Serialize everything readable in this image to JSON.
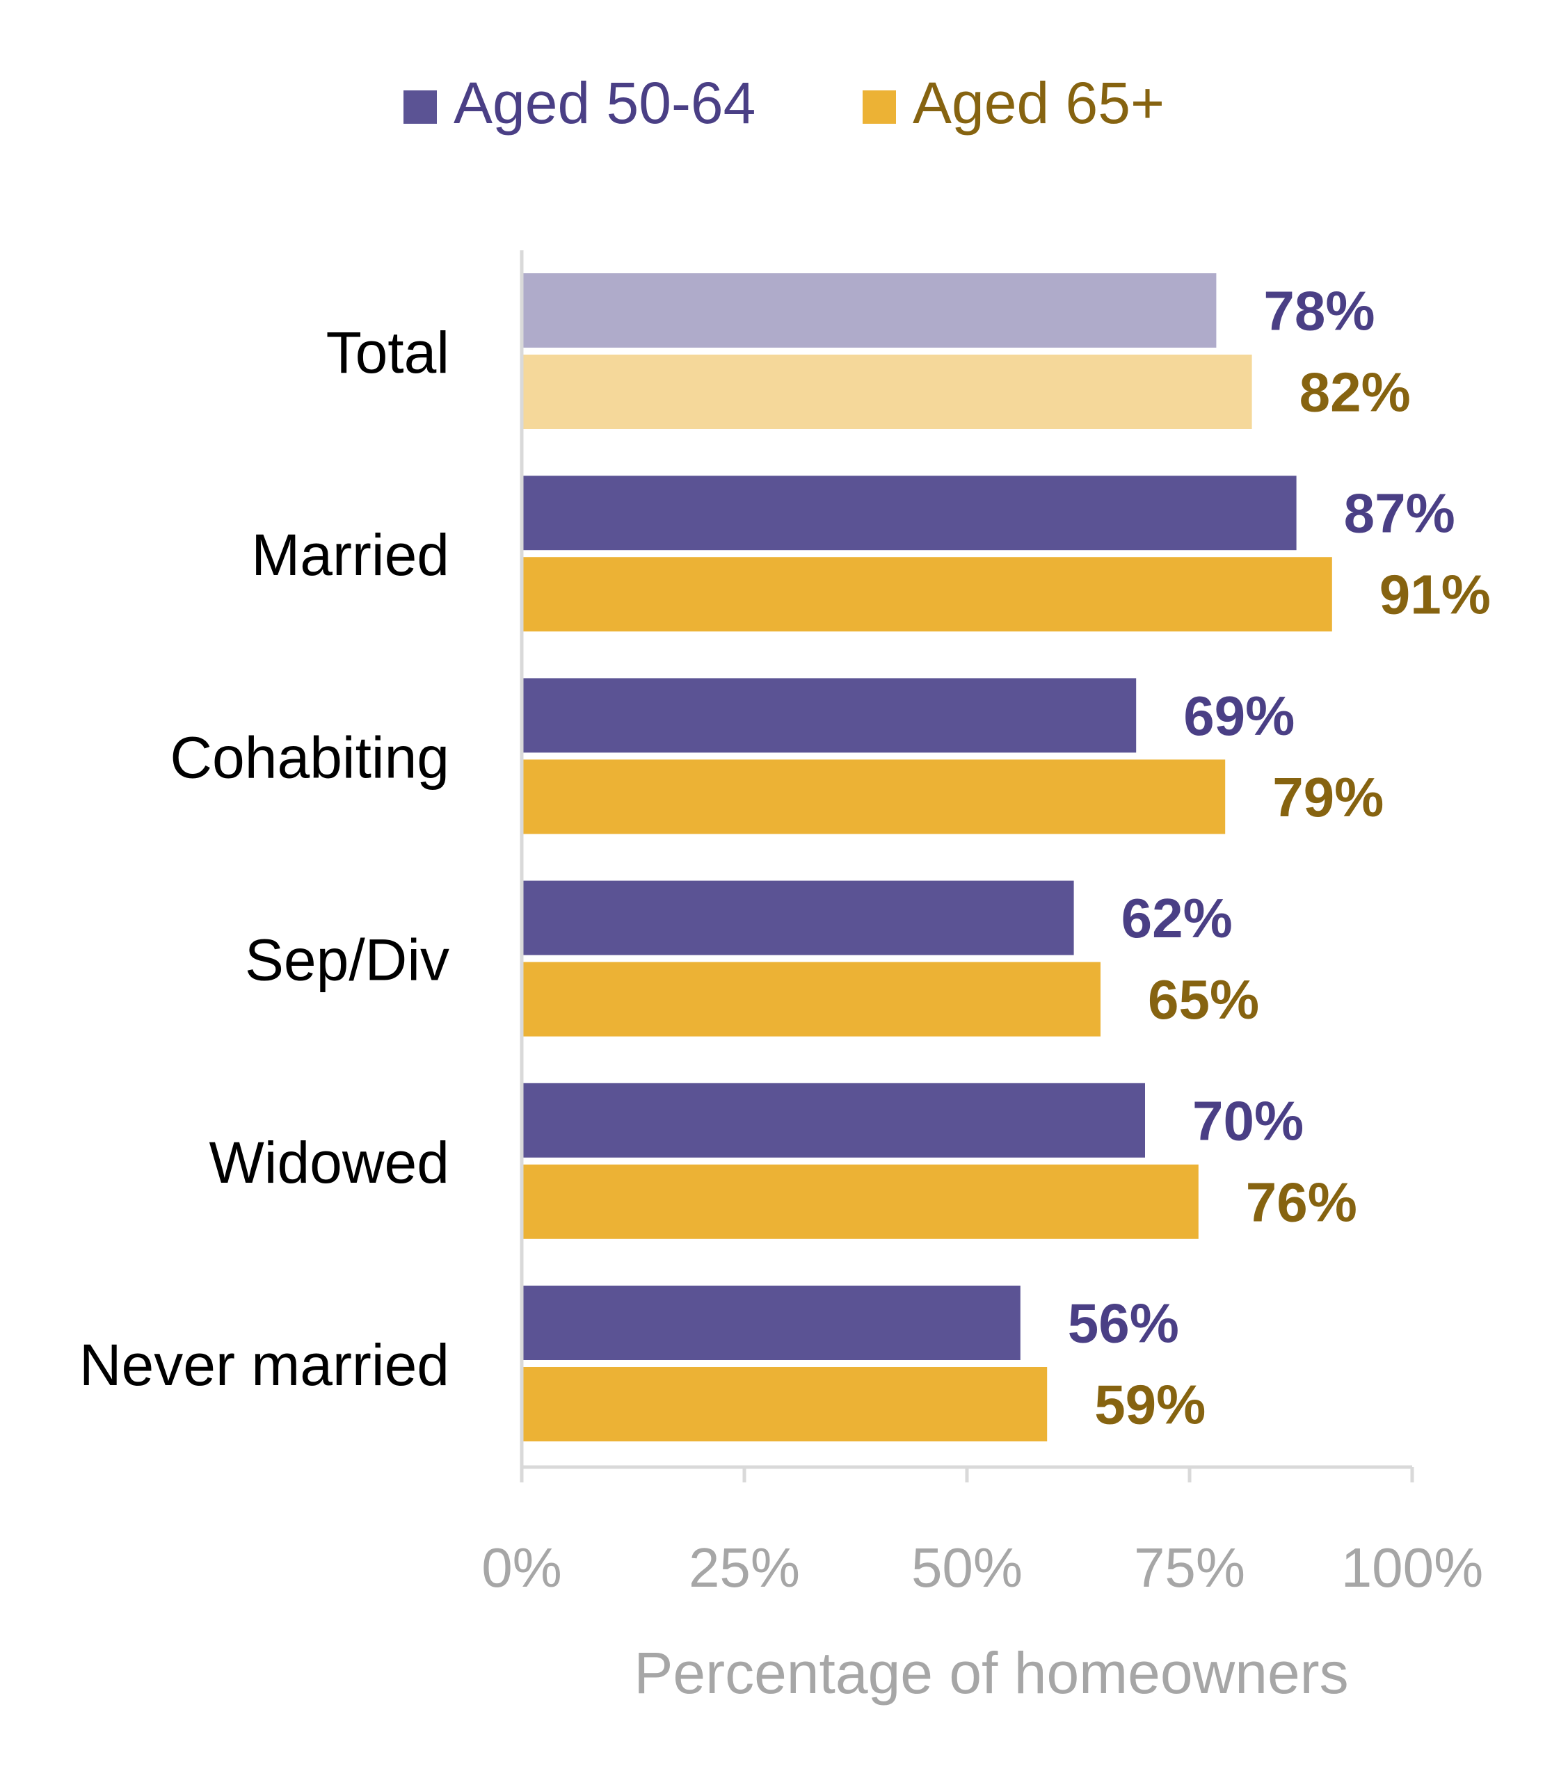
{
  "chart_data": {
    "type": "bar",
    "orientation": "horizontal",
    "categories": [
      "Total",
      "Married",
      "Cohabiting",
      "Sep/Div",
      "Widowed",
      "Never married"
    ],
    "series": [
      {
        "name": "Aged 50-64",
        "values": [
          78,
          87,
          69,
          62,
          70,
          56
        ],
        "labels": [
          "78%",
          "87%",
          "69%",
          "62%",
          "70%",
          "56%"
        ]
      },
      {
        "name": "Aged 65+",
        "values": [
          82,
          91,
          79,
          65,
          76,
          59
        ],
        "labels": [
          "82%",
          "91%",
          "79%",
          "65%",
          "76%",
          "59%"
        ]
      }
    ],
    "xlabel": "Percentage of homeowners",
    "xlim": [
      0,
      100
    ],
    "xticks": [
      0,
      25,
      50,
      75,
      100
    ],
    "xtick_labels": [
      "0%",
      "25%",
      "50%",
      "75%",
      "100%"
    ],
    "legend_position": "top-center",
    "grid": false,
    "colors": {
      "series1": "#5b5394",
      "series2": "#ecb235",
      "series1_total": "#afabca",
      "series2_total": "#f5d89a",
      "series1_label": "#4a3f85",
      "series2_label": "#866310",
      "axis": "#d9d9d9",
      "tick_label": "#a6a6a6",
      "category_label": "#000000"
    }
  }
}
